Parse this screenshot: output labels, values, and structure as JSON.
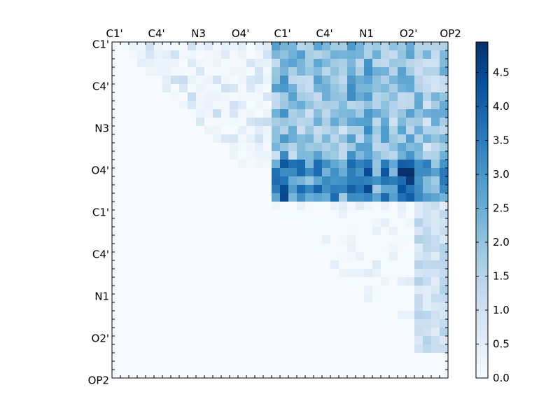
{
  "chart_data": {
    "type": "heatmap",
    "title": "",
    "xlabel": "",
    "ylabel": "",
    "colormap": "Blues",
    "colorbar": {
      "min": 0.0,
      "max": 4.95,
      "ticks": [
        "0.0",
        "0.5",
        "1.0",
        "1.5",
        "2.0",
        "2.5",
        "3.0",
        "3.5",
        "4.0",
        "4.5"
      ]
    },
    "grid_size": 40,
    "x_tick_labels": [
      "C1'",
      "C4'",
      "N3",
      "O4'",
      "C1'",
      "C4'",
      "N1",
      "O2'",
      "OP2"
    ],
    "y_tick_labels": [
      "C1'",
      "C4'",
      "N3",
      "O4'",
      "C1'",
      "C4'",
      "N1",
      "O2'",
      "OP2"
    ],
    "label_step": 5,
    "colors": {
      "low": "#f7fbff",
      "high": "#08306b",
      "frame": "#000000"
    },
    "regions": [
      {
        "name": "upper-left block",
        "rows": [
          0,
          14
        ],
        "cols": [
          0,
          18
        ],
        "value_range": [
          0.0,
          1.2
        ],
        "note": "upper triangle only"
      },
      {
        "name": "upper-right block",
        "rows": [
          0,
          14
        ],
        "cols": [
          19,
          39
        ],
        "value_range": [
          0.8,
          3.5
        ]
      },
      {
        "name": "strong rows",
        "rows": [
          14,
          18
        ],
        "cols": [
          19,
          39
        ],
        "value_range": [
          2.0,
          4.95
        ]
      },
      {
        "name": "lower-right block",
        "rows": [
          19,
          36
        ],
        "cols": [
          19,
          39
        ],
        "value_range": [
          0.0,
          1.6
        ],
        "note": "upper triangle only"
      }
    ]
  }
}
